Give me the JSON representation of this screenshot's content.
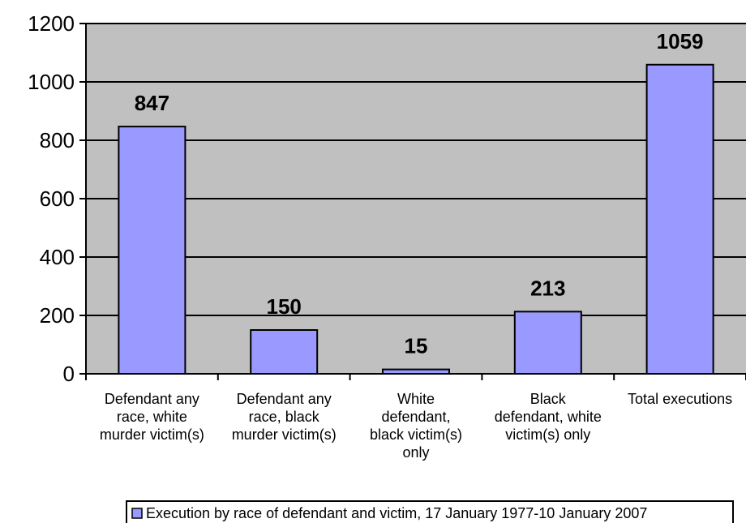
{
  "chart_data": {
    "type": "bar",
    "categories": [
      [
        "Defendant any",
        "race, white",
        "murder victim(s)"
      ],
      [
        "Defendant any",
        "race, black",
        "murder victim(s)"
      ],
      [
        "White",
        "defendant,",
        "black victim(s)",
        "only"
      ],
      [
        "Black",
        "defendant, white",
        "victim(s) only"
      ],
      [
        "Total executions"
      ]
    ],
    "series": [
      {
        "name": "Execution by race of defendant and victim, 17 January 1977-10 January 2007",
        "values": [
          847,
          150,
          15,
          213,
          1059
        ]
      }
    ],
    "data_labels": [
      "847",
      "150",
      "15",
      "213",
      "1059"
    ],
    "ylim": [
      0,
      1200
    ],
    "yticks": [
      0,
      200,
      400,
      600,
      800,
      1000,
      1200
    ],
    "grid": true,
    "legend_position": "bottom",
    "colors": {
      "plot_background": "#c0c0c0",
      "bar_fill": "#9999ff",
      "bar_stroke": "#000000",
      "grid": "#000000"
    }
  }
}
